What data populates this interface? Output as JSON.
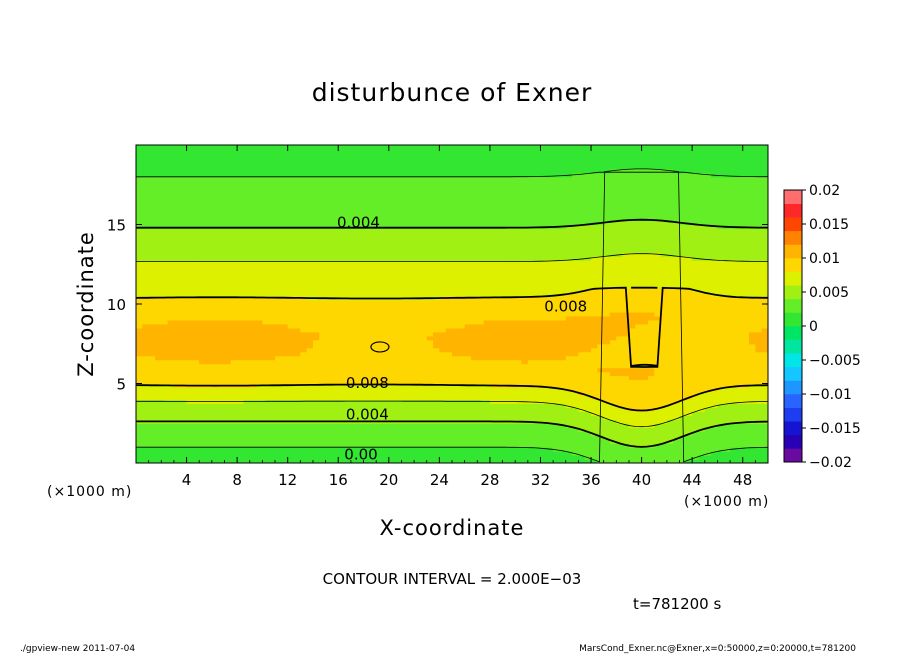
{
  "chart_data": {
    "type": "heatmap",
    "title": "disturbunce of Exner",
    "xlabel": "X-coordinate",
    "ylabel": "Z-coordinate",
    "x_unit": "(×1000 m)",
    "y_unit": "(×1000 m)",
    "xlim": [
      0,
      50
    ],
    "ylim": [
      0,
      20
    ],
    "x_ticks": [
      4,
      8,
      12,
      16,
      20,
      24,
      28,
      32,
      36,
      40,
      44,
      48
    ],
    "y_ticks": [
      5,
      10,
      15
    ],
    "colorbar": {
      "ticks": [
        0.02,
        0.015,
        0.01,
        0.005,
        0,
        -0.005,
        -0.01,
        -0.015,
        -0.02
      ],
      "tick_labels": [
        "0.02",
        "0.015",
        "0.01",
        "0.005",
        "0",
        "−0.005",
        "−0.01",
        "−0.015",
        "−0.02"
      ],
      "levels": [
        -0.02,
        -0.018,
        -0.016,
        -0.014,
        -0.012,
        -0.01,
        -0.008,
        -0.006,
        -0.004,
        -0.002,
        0,
        0.002,
        0.004,
        0.006,
        0.008,
        0.01,
        0.012,
        0.014,
        0.016,
        0.018,
        0.02
      ],
      "colors": [
        "#6a0aa0",
        "#2a00b4",
        "#1414d2",
        "#1e3cf0",
        "#2864ff",
        "#1e96ff",
        "#14c8ff",
        "#00e6e6",
        "#00e6a0",
        "#00e664",
        "#32e632",
        "#64ee28",
        "#a0f014",
        "#dcf000",
        "#ffd700",
        "#ffb400",
        "#ff8200",
        "#ff4600",
        "#ff2828",
        "#ff6e6e"
      ]
    },
    "profile_z": [
      0,
      1,
      2,
      3,
      4,
      5,
      6,
      7,
      8,
      9,
      10,
      11,
      12,
      13,
      14,
      15,
      16,
      17,
      18,
      19,
      20
    ],
    "profile_values": [
      0.001,
      0.002,
      0.0032,
      0.0045,
      0.0062,
      0.0082,
      0.0095,
      0.0101,
      0.0102,
      0.0098,
      0.0085,
      0.0072,
      0.0064,
      0.0058,
      0.0048,
      0.0038,
      0.0032,
      0.0026,
      0.002,
      0.0014,
      0.0008
    ],
    "anomaly_x_center": 40,
    "contour_labels": [
      {
        "text": "0.004",
        "x": 17.6,
        "z": 15.2
      },
      {
        "text": "0.008",
        "x": 34,
        "z": 9.9
      },
      {
        "text": "0.008",
        "x": 18.3,
        "z": 5.1
      },
      {
        "text": "0.004",
        "x": 18.3,
        "z": 3.1
      },
      {
        "text": "0.00",
        "x": 17.8,
        "z": 0.6
      }
    ],
    "contour_interval_text": "CONTOUR INTERVAL = 2.000E−03",
    "time_text": "t=781200 s"
  },
  "footer": {
    "left": "./gpview-new   2011-07-04",
    "right": "MarsCond_Exner.nc@Exner,x=0:50000,z=0:20000,t=781200"
  }
}
